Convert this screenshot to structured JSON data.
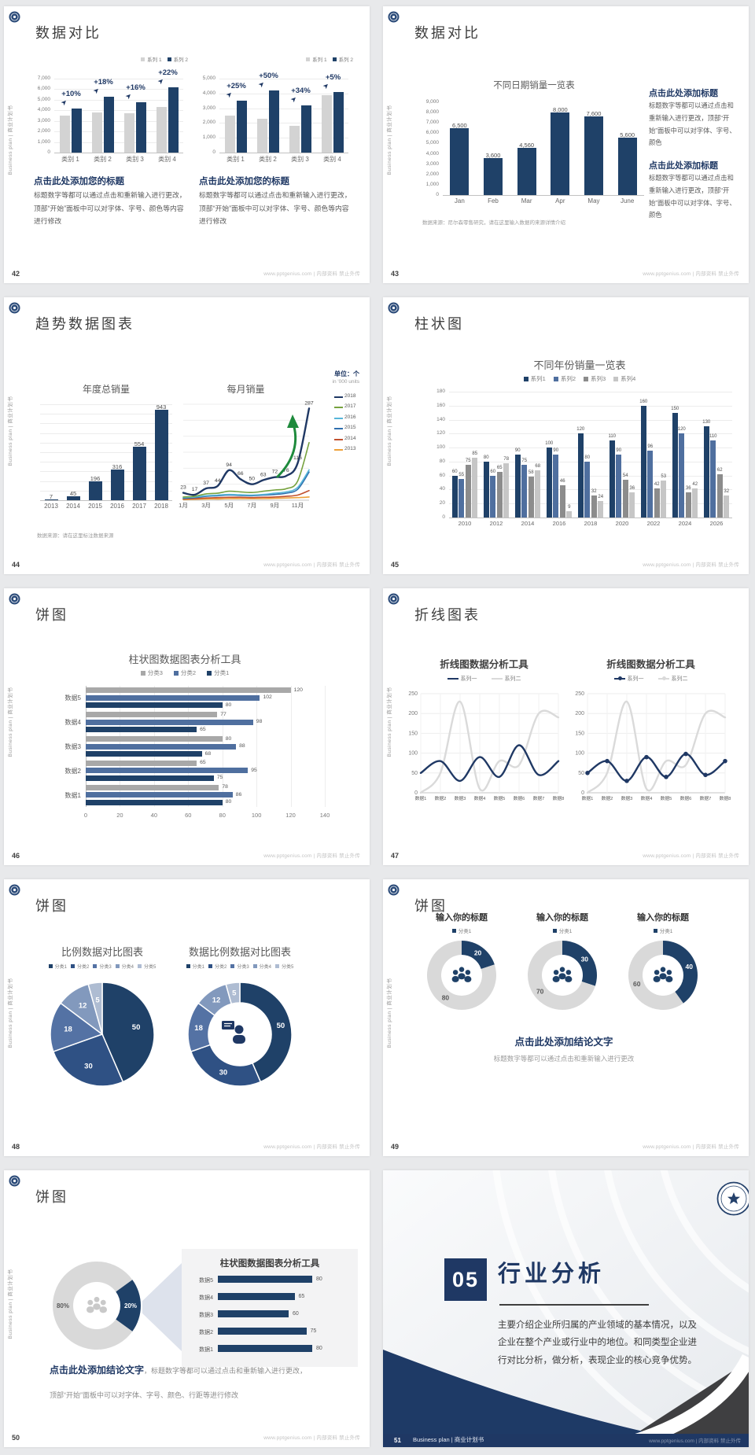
{
  "page": {
    "bg": "#e8e9eb",
    "footer_site": "www.pptgenius.com | 内部资料 禁止外传"
  },
  "common": {
    "sidebar_text": "Business plan | 商业计划书",
    "brand_icon": "university-emblem"
  },
  "colors": {
    "navy": "#1f4168",
    "navy_text": "#1f3864",
    "med_blue": "#4f6f9f",
    "dark_gray": "#8c8c8c",
    "light_gray": "#c6c6c6",
    "bar_gray": "#d3d3d3",
    "line_gray": "#dadada",
    "green": "#76a23e",
    "light_blue": "#57b6d9",
    "mid_blue": "#2e6fae",
    "brick": "#c1502e",
    "orange": "#eda13a",
    "arrow_green": "#1e8a3c",
    "donut_gray": "#d9d9d9",
    "pie": [
      "#1f4168",
      "#2f5184",
      "#5472a4",
      "#8299bd",
      "#aebcd2"
    ]
  },
  "slides": {
    "s42": {
      "page": "42",
      "title": "数据对比",
      "heading": "点击此处添加您的标题",
      "body": "标题数字等都可以通过点击和重新输入进行更改，顶部“开始”面板中可以对字体、字号、颜色等内容进行修改",
      "charts": [
        {
          "type": "bar",
          "ymax": 7000,
          "ystep": 1000,
          "categories": [
            "类别 1",
            "类别 2",
            "类别 3",
            "类别 4"
          ],
          "series": [
            {
              "name": "系列 1",
              "color": "#d3d3d3",
              "values": [
                3500,
                3800,
                3700,
                4300
              ]
            },
            {
              "name": "系列 2",
              "color": "#1f4168",
              "values": [
                4200,
                5300,
                4800,
                6200
              ]
            }
          ],
          "annotations": [
            "+10%",
            "+18%",
            "+16%",
            "+22%"
          ]
        },
        {
          "type": "bar",
          "ymax": 5000,
          "ystep": 1000,
          "categories": [
            "类别 1",
            "类别 2",
            "类别 3",
            "类别 4"
          ],
          "series": [
            {
              "name": "系列 1",
              "color": "#d3d3d3",
              "values": [
                2500,
                2300,
                1800,
                3900
              ]
            },
            {
              "name": "系列 2",
              "color": "#1f4168",
              "values": [
                3500,
                4200,
                3200,
                4100
              ]
            }
          ],
          "annotations": [
            "+25%",
            "+50%",
            "+34%",
            "+5%"
          ]
        }
      ]
    },
    "s43": {
      "page": "43",
      "title": "数据对比",
      "chart": {
        "type": "bar",
        "title": "不同日期销量一览表",
        "ymax": 9000,
        "ystep": 1000,
        "categories": [
          "Jan",
          "Feb",
          "Mar",
          "Apr",
          "May",
          "June"
        ],
        "values": [
          6500,
          3600,
          4560,
          8000,
          7600,
          5600
        ]
      },
      "footnote": "数据来源：尼尔森零售研究，请在这里输入数据的来源详情介绍",
      "blocks": [
        {
          "heading": "点击此处添加标题",
          "body": "标题数字等都可以通过点击和重新输入进行更改，顶部“开始”面板中可以对字体、字号、颜色"
        },
        {
          "heading": "点击此处添加标题",
          "body": "标题数字等都可以通过点击和重新输入进行更改，顶部“开始”面板中可以对字体、字号、颜色"
        }
      ]
    },
    "s44": {
      "page": "44",
      "title": "趋势数据图表",
      "unit_cn": "单位：个",
      "unit_en": "in '000 units",
      "bar": {
        "type": "bar",
        "title": "年度总销量",
        "ymax": 1000,
        "ystep": 100,
        "categories": [
          "2013",
          "2014",
          "2015",
          "2016",
          "2017",
          "2018"
        ],
        "values": [
          7,
          45,
          196,
          316,
          554,
          943
        ]
      },
      "line": {
        "type": "line",
        "title": "每月销量",
        "ymax": 300,
        "xlabels": [
          "1月",
          "3月",
          "5月",
          "7月",
          "9月",
          "11月"
        ],
        "series": [
          {
            "name": "2018",
            "color": "#1f3864",
            "values": [
              23,
              17,
              37,
              44,
              94,
              66,
              50,
              63,
              72,
              76,
              116,
              287
            ],
            "labeled": true
          },
          {
            "name": "2017",
            "color": "#76a23e",
            "values": [
              10,
              12,
              20,
              22,
              28,
              26,
              24,
              28,
              32,
              36,
              60,
              180
            ]
          },
          {
            "name": "2016",
            "color": "#57b6d9",
            "values": [
              8,
              10,
              14,
              16,
              18,
              17,
              16,
              18,
              22,
              26,
              40,
              95
            ]
          },
          {
            "name": "2015",
            "color": "#2e6fae",
            "values": [
              6,
              8,
              12,
              14,
              16,
              15,
              14,
              16,
              18,
              22,
              34,
              88
            ]
          },
          {
            "name": "2014",
            "color": "#c1502e",
            "values": [
              4,
              5,
              7,
              8,
              9,
              9,
              8,
              9,
              10,
              12,
              16,
              30
            ]
          },
          {
            "name": "2013",
            "color": "#eda13a",
            "values": [
              2,
              3,
              4,
              4,
              5,
              5,
              5,
              5,
              6,
              7,
              8,
              10
            ]
          }
        ]
      },
      "footnote": "数据来源：请在这里标注数据来源"
    },
    "s45": {
      "page": "45",
      "title": "柱状图",
      "chart": {
        "type": "bar",
        "title": "不同年份销量一览表",
        "ymax": 180,
        "ystep": 20,
        "legend": [
          "系列1",
          "系列2",
          "系列3",
          "系列4"
        ],
        "categories": [
          "2010",
          "2012",
          "2014",
          "2016",
          "2018",
          "2020",
          "2022",
          "2024",
          "2026"
        ],
        "series": [
          {
            "name": "系列1",
            "color": "#1f4168",
            "values": [
              60,
              80,
              90,
              100,
              120,
              110,
              160,
              150,
              130
            ]
          },
          {
            "name": "系列2",
            "color": "#4f6f9f",
            "values": [
              55,
              60,
              75,
              90,
              80,
              90,
              96,
              120,
              110
            ]
          },
          {
            "name": "系列3",
            "color": "#8c8c8c",
            "values": [
              75,
              65,
              58,
              46,
              32,
              54,
              42,
              36,
              62
            ]
          },
          {
            "name": "系列4",
            "color": "#c6c6c6",
            "values": [
              85,
              78,
              68,
              9,
              24,
              36,
              53,
              42,
              32
            ]
          }
        ]
      }
    },
    "s46": {
      "page": "46",
      "title": "饼图",
      "chart": {
        "type": "bar-horizontal",
        "title": "柱状图数据图表分析工具",
        "xmax": 140,
        "xstep": 20,
        "legend": [
          "分类3",
          "分类2",
          "分类1"
        ],
        "categories": [
          "数据5",
          "数据4",
          "数据3",
          "数据2",
          "数据1"
        ],
        "series": [
          {
            "name": "分类3",
            "color": "#a8a8a8",
            "values": [
              120,
              77,
              80,
              65,
              78
            ]
          },
          {
            "name": "分类2",
            "color": "#4f6f9f",
            "values": [
              102,
              98,
              88,
              95,
              86
            ]
          },
          {
            "name": "分类1",
            "color": "#1f4168",
            "values": [
              80,
              65,
              68,
              75,
              80
            ]
          }
        ]
      }
    },
    "s47": {
      "page": "47",
      "title": "折线图表",
      "charts": [
        {
          "type": "line",
          "title": "折线图数据分析工具",
          "legend": [
            "系列一",
            "系列二"
          ],
          "ymax": 250,
          "ystep": 50,
          "xlabels": [
            "数据1",
            "数据2",
            "数据3",
            "数据4",
            "数据5",
            "数据6",
            "数据7",
            "数据8"
          ],
          "series1": [
            50,
            80,
            30,
            90,
            40,
            120,
            45,
            80
          ],
          "series2": [
            0,
            50,
            230,
            10,
            80,
            70,
            200,
            190
          ],
          "markers": false
        },
        {
          "type": "line",
          "title": "折线图数据分析工具",
          "legend": [
            "系列一",
            "系列二"
          ],
          "ymax": 250,
          "ystep": 50,
          "xlabels": [
            "数据1",
            "数据2",
            "数据3",
            "数据4",
            "数据5",
            "数据6",
            "数据7",
            "数据8"
          ],
          "series1": [
            50,
            80,
            30,
            90,
            40,
            98,
            45,
            80
          ],
          "series2": [
            0,
            50,
            230,
            10,
            80,
            70,
            200,
            190
          ],
          "markers": true
        }
      ]
    },
    "s48": {
      "page": "48",
      "title": "饼图",
      "legend": [
        "分类1",
        "分类2",
        "分类3",
        "分类4",
        "分类5"
      ],
      "pies": [
        {
          "type": "pie",
          "title": "比例数据对比图表",
          "values": [
            50,
            30,
            18,
            12,
            5
          ],
          "donut": false
        },
        {
          "type": "pie",
          "title": "数据比例数据对比图表",
          "values": [
            50,
            30,
            18,
            12,
            5
          ],
          "donut": true,
          "center_icon": "person-speech-bubble"
        }
      ]
    },
    "s49": {
      "page": "49",
      "title": "饼图",
      "groups": [
        {
          "heading": "输入你的标题",
          "legend": "分类1",
          "value": 20,
          "rest": 80
        },
        {
          "heading": "输入你的标题",
          "legend": "分类1",
          "value": 30,
          "rest": 70
        },
        {
          "heading": "输入你的标题",
          "legend": "分类1",
          "value": 40,
          "rest": 60
        }
      ],
      "conclusion": "点击此处添加结论文字",
      "conclusion_body": "标题数字等都可以通过点击和重新输入进行更改"
    },
    "s50": {
      "page": "50",
      "title": "饼图",
      "donut": {
        "type": "pie",
        "gray_label": "80%",
        "navy_label": "20%",
        "values": [
          20,
          80
        ]
      },
      "panel": {
        "type": "bar-horizontal",
        "title": "柱状图数据图表分析工具",
        "categories": [
          "数据5",
          "数据4",
          "数据3",
          "数据2",
          "数据1"
        ],
        "values": [
          80,
          65,
          60,
          75,
          80
        ]
      },
      "conclusion_bold": "点击此处添加结论文字",
      "conclusion_rest": "，标题数字等都可以通过点击和重新输入进行更改，顶部“开始”面板中可以对字体、字号、颜色、行距等进行修改"
    },
    "s51": {
      "page": "51",
      "number": "05",
      "title": "行业分析",
      "body": "主要介绍企业所归属的产业领域的基本情况，以及企业在整个产业或行业中的地位。和同类型企业进行对比分析，做分析，表现企业的核心竞争优势。",
      "footer_label": "Business plan | 商业计划书"
    }
  }
}
